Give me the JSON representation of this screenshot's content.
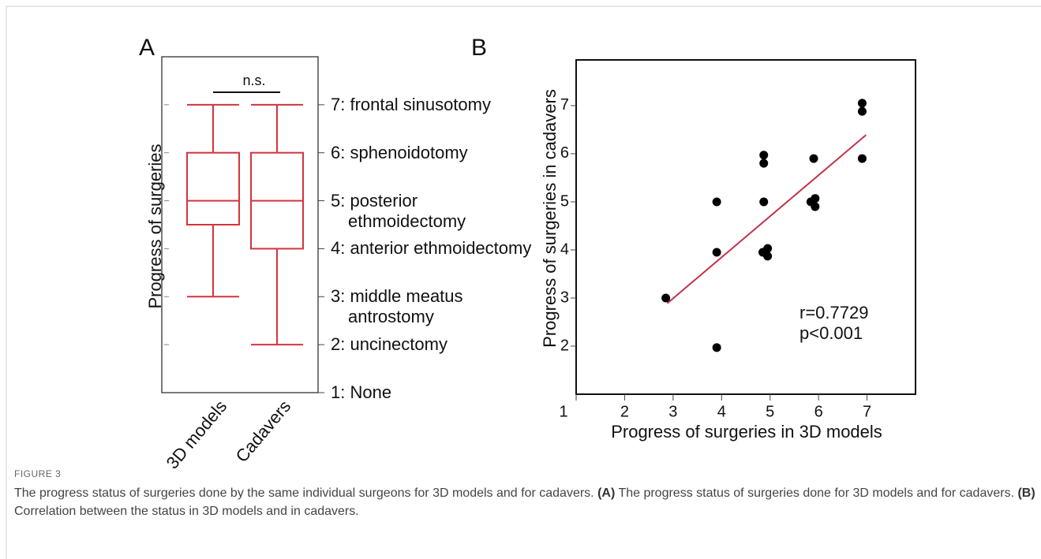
{
  "chart_data": [
    {
      "type": "box",
      "panel_label": "A",
      "ylabel": "Progress of surgeries",
      "categories": [
        "3D models",
        "Cadavers"
      ],
      "color": "#d6333f",
      "min": [
        3,
        2
      ],
      "q1": [
        4.5,
        4
      ],
      "median": [
        5,
        5
      ],
      "q3": [
        6,
        6
      ],
      "max": [
        7,
        7
      ],
      "ylim": [
        1,
        8
      ],
      "yticks": [
        {
          "value": 1,
          "label": "1: None"
        },
        {
          "value": 2,
          "label": "2: uncinectomy"
        },
        {
          "value": 3,
          "label": "3: middle meatus antrostomy"
        },
        {
          "value": 4,
          "label": "4: anterior ethmoidectomy"
        },
        {
          "value": 5,
          "label": "5: posterior ethmoidectomy"
        },
        {
          "value": 6,
          "label": "6: sphenoidotomy"
        },
        {
          "value": 7,
          "label": "7: frontal sinusotomy"
        }
      ],
      "annotation": "n.s."
    },
    {
      "type": "scatter",
      "panel_label": "B",
      "xlabel": "Progress of surgeries in 3D models",
      "ylabel": "Progress of surgeries in cadavers",
      "x": [
        2.85,
        3.9,
        3.9,
        3.9,
        4.87,
        4.87,
        4.87,
        4.85,
        4.95,
        4.95,
        5.9,
        5.84,
        5.93,
        5.93,
        6.9,
        6.9,
        6.9
      ],
      "values": [
        3.0,
        5.0,
        3.95,
        1.97,
        5.97,
        5.8,
        5.0,
        3.95,
        4.03,
        3.87,
        5.9,
        5.0,
        5.07,
        4.9,
        7.05,
        6.88,
        5.9
      ],
      "color": "#000000",
      "fit": {
        "x": [
          2.88,
          6.98
        ],
        "values": [
          2.89,
          6.39
        ],
        "color": "#c0334a"
      },
      "xlim": [
        1,
        8
      ],
      "ylim": [
        1,
        7.95
      ],
      "xticks": [
        1,
        2,
        3,
        4,
        5,
        6,
        7
      ],
      "yticks": [
        2,
        3,
        4,
        5,
        6,
        7
      ],
      "annotations": [
        "r=0.7729",
        "p<0.001"
      ]
    }
  ],
  "figure_label": "FIGURE 3",
  "caption": [
    "The progress status of surgeries done by the same individual surgeons for 3D models and for cadavers. ",
    "(A)",
    " The progress status of surgeries done for 3D models and for cadavers. ",
    "(B)",
    " Correlation between the status in 3D models and in cadavers."
  ]
}
